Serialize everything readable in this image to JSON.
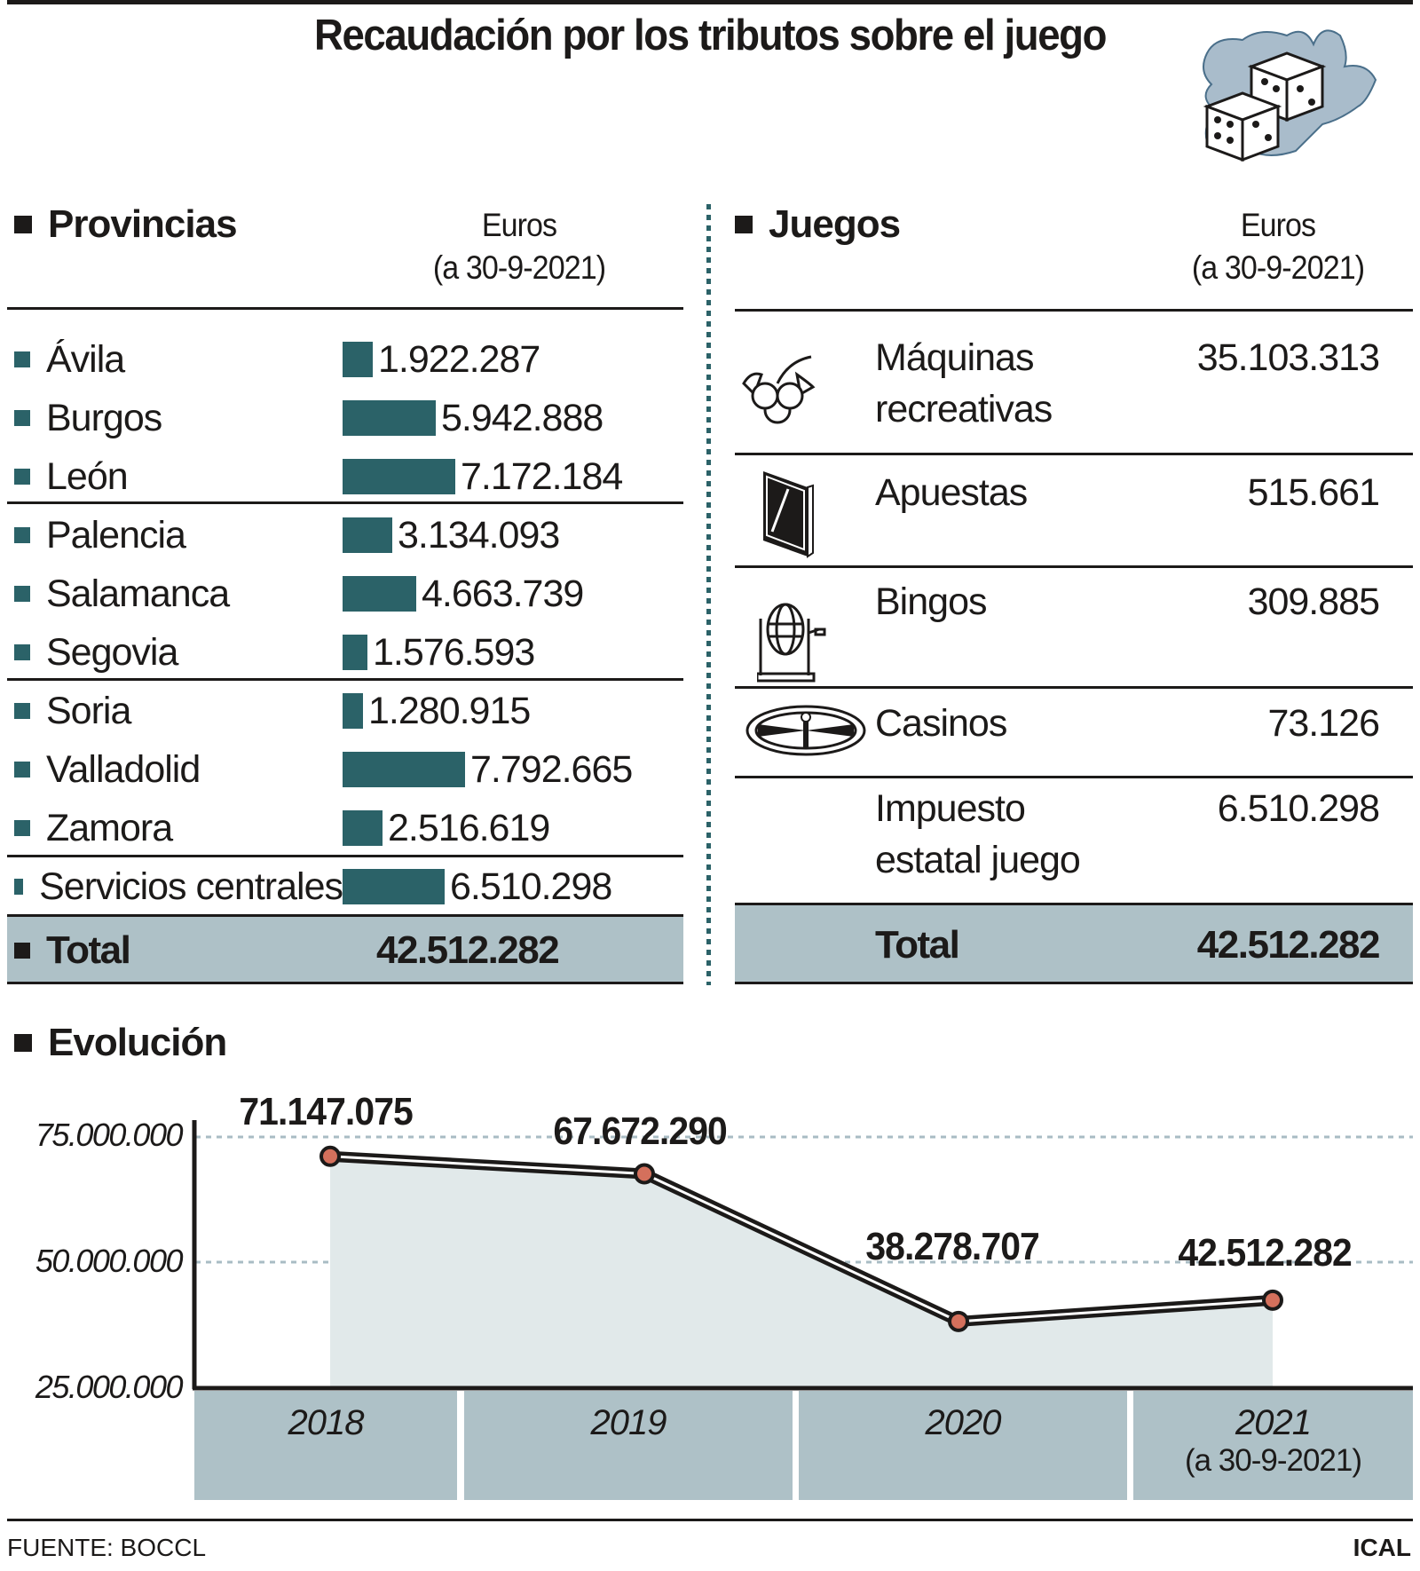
{
  "title": "Recaudación por los tributos sobre el juego",
  "logo": {
    "icon": "dice-on-map-icon"
  },
  "provincias": {
    "heading": "Provincias",
    "unit_line1": "Euros",
    "unit_line2": "(a 30-9-2021)",
    "rows": [
      {
        "name": "Ávila",
        "value": "1.922.287",
        "amount": 1922287
      },
      {
        "name": "Burgos",
        "value": "5.942.888",
        "amount": 5942888
      },
      {
        "name": "León",
        "value": "7.172.184",
        "amount": 7172184
      },
      {
        "name": "Palencia",
        "value": "3.134.093",
        "amount": 3134093
      },
      {
        "name": "Salamanca",
        "value": "4.663.739",
        "amount": 4663739
      },
      {
        "name": "Segovia",
        "value": "1.576.593",
        "amount": 1576593
      },
      {
        "name": "Soria",
        "value": "1.280.915",
        "amount": 1280915
      },
      {
        "name": "Valladolid",
        "value": "7.792.665",
        "amount": 7792665
      },
      {
        "name": "Zamora",
        "value": "2.516.619",
        "amount": 2516619
      },
      {
        "name": "Servicios centrales",
        "value": "6.510.298",
        "amount": 6510298
      }
    ],
    "total_label": "Total",
    "total_value": "42.512.282"
  },
  "juegos": {
    "heading": "Juegos",
    "unit_line1": "Euros",
    "unit_line2": "(a 30-9-2021)",
    "rows": [
      {
        "line1": "Máquinas",
        "line2": "recreativas",
        "value": "35.103.313",
        "icon": "fruit-slot-icon"
      },
      {
        "line1": "Apuestas",
        "line2": "",
        "value": "515.661",
        "icon": "screen-icon"
      },
      {
        "line1": "Bingos",
        "line2": "",
        "value": "309.885",
        "icon": "bingo-drum-icon"
      },
      {
        "line1": "Casinos",
        "line2": "",
        "value": "73.126",
        "icon": "roulette-icon"
      },
      {
        "line1": "Impuesto",
        "line2": "estatal juego",
        "value": "6.510.298",
        "icon": ""
      }
    ],
    "total_label": "Total",
    "total_value": "42.512.282"
  },
  "evolucion": {
    "heading": "Evolución",
    "y_ticks": [
      "75.000.000",
      "50.000.000",
      "25.000.000"
    ],
    "x_labels": [
      {
        "year": "2018",
        "sub": ""
      },
      {
        "year": "2019",
        "sub": ""
      },
      {
        "year": "2020",
        "sub": ""
      },
      {
        "year": "2021",
        "sub": "(a 30-9-2021)"
      }
    ],
    "data_labels": [
      "71.147.075",
      "67.672.290",
      "38.278.707",
      "42.512.282"
    ]
  },
  "footer": {
    "source": "FUENTE: BOCCL",
    "credit": "ICAL"
  },
  "colors": {
    "bar": "#2b6268",
    "total_bg": "#aec1c7",
    "area": "#e1e9ea",
    "marker": "#d4705c",
    "ink": "#1c1a19"
  },
  "chart_data": [
    {
      "type": "bar",
      "title": "Provincias",
      "ylabel": "Euros (a 30-9-2021)",
      "categories": [
        "Ávila",
        "Burgos",
        "León",
        "Palencia",
        "Salamanca",
        "Segovia",
        "Soria",
        "Valladolid",
        "Zamora",
        "Servicios centrales"
      ],
      "values": [
        1922287,
        5942888,
        7172184,
        3134093,
        4663739,
        1576593,
        1280915,
        7792665,
        2516619,
        6510298
      ],
      "total": 42512282,
      "orientation": "horizontal"
    },
    {
      "type": "table",
      "title": "Juegos",
      "columns": [
        "Juego",
        "Euros (a 30-9-2021)"
      ],
      "rows": [
        [
          "Máquinas recreativas",
          35103313
        ],
        [
          "Apuestas",
          515661
        ],
        [
          "Bingos",
          309885
        ],
        [
          "Casinos",
          73126
        ],
        [
          "Impuesto estatal juego",
          6510298
        ],
        [
          "Total",
          42512282
        ]
      ]
    },
    {
      "type": "line",
      "title": "Evolución",
      "x": [
        "2018",
        "2019",
        "2020",
        "2021 (a 30-9-2021)"
      ],
      "series": [
        {
          "name": "Recaudación",
          "values": [
            71147075,
            67672290,
            38278707,
            42512282
          ]
        }
      ],
      "ylim": [
        25000000,
        75000000
      ],
      "yticks": [
        25000000,
        50000000,
        75000000
      ],
      "grid": true,
      "area_fill": true
    }
  ]
}
